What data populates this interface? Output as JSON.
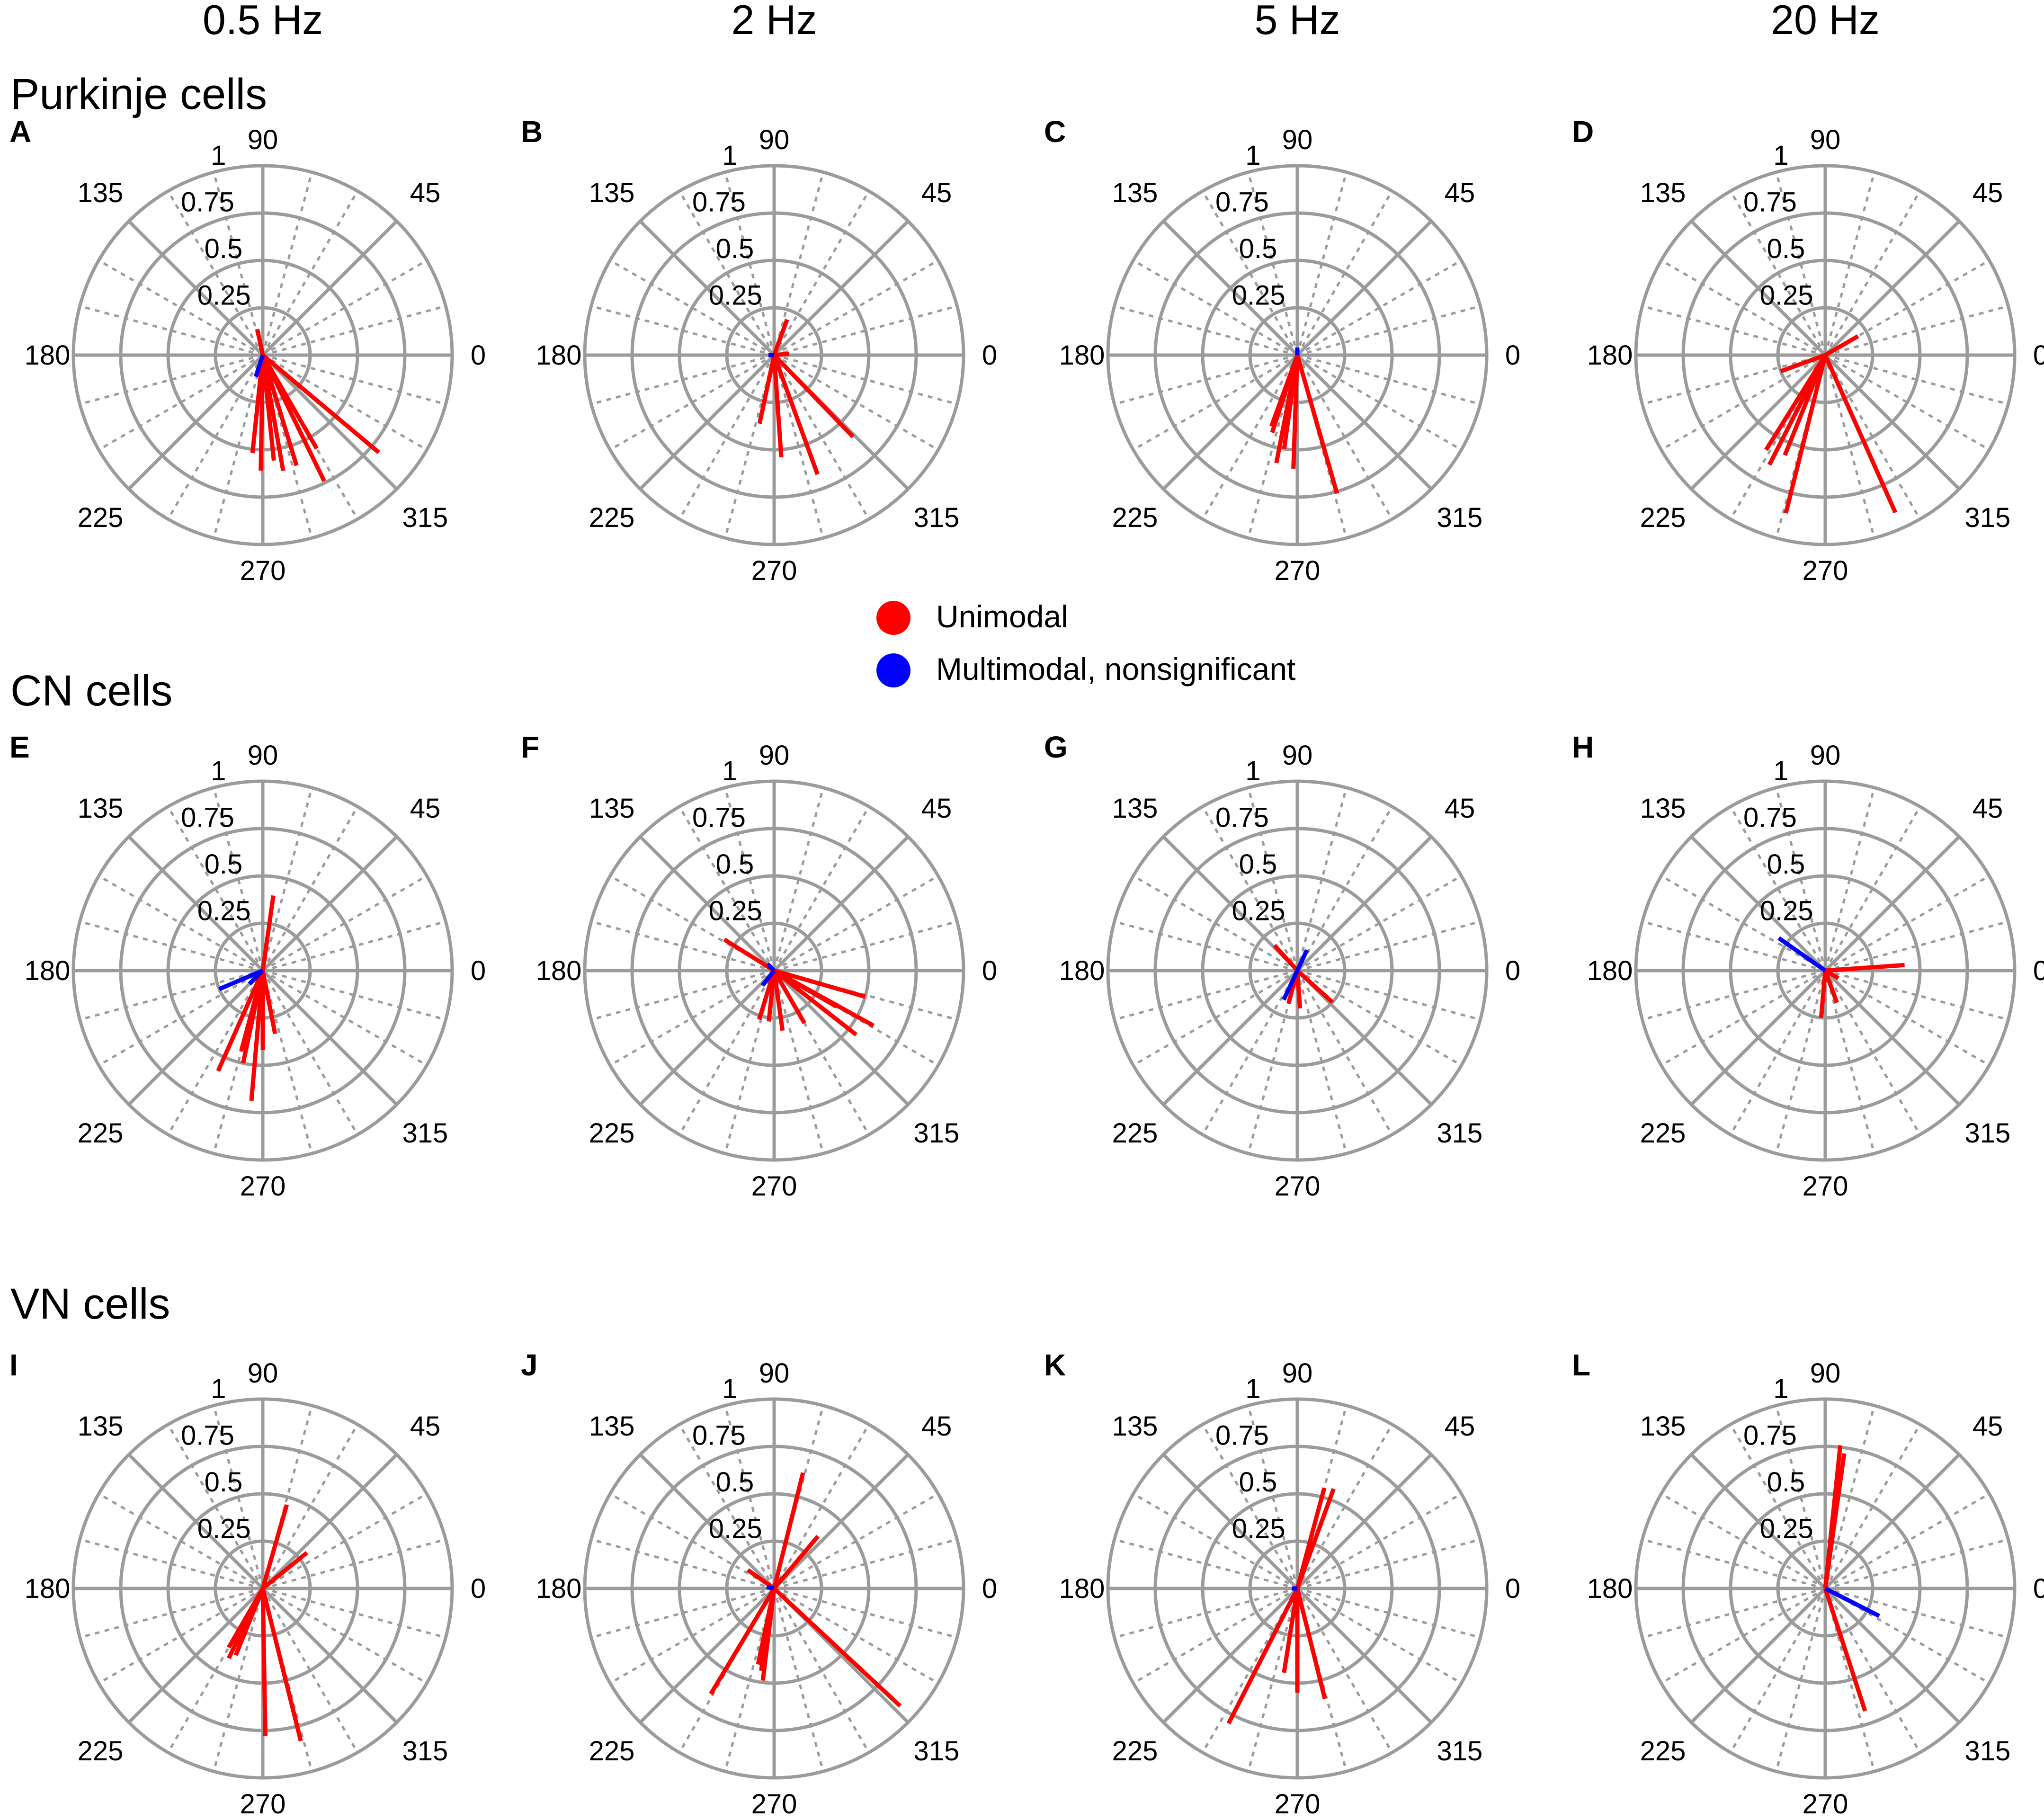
{
  "title_row": [
    "0.5 Hz",
    "2 Hz",
    "5 Hz",
    "20 Hz"
  ],
  "rows": [
    "Purkinje cells",
    "CN cells",
    "VN cells"
  ],
  "legend": {
    "unimodal": "Unimodal",
    "multimodal": "Multimodal, nonsignificant",
    "unimodal_color": "#ff0000",
    "multimodal_color": "#0000ff"
  },
  "chart_data": {
    "type": "polar",
    "radial_ticks": [
      "0.25",
      "0.5",
      "0.75",
      "1"
    ],
    "angle_ticks": [
      "0",
      "45",
      "90",
      "135",
      "180",
      "225",
      "270",
      "315"
    ],
    "rlim": [
      0,
      1
    ],
    "angle_unit": "degrees",
    "panels": [
      {
        "letter": "A",
        "row": "Purkinje cells",
        "freq": "0.5 Hz",
        "vectors": [
          {
            "angle": 320,
            "r": 0.8,
            "type": "unimodal"
          },
          {
            "angle": 296,
            "r": 0.74,
            "type": "unimodal"
          },
          {
            "angle": 300,
            "r": 0.57,
            "type": "unimodal"
          },
          {
            "angle": 287,
            "r": 0.61,
            "type": "unimodal"
          },
          {
            "angle": 280,
            "r": 0.62,
            "type": "unimodal"
          },
          {
            "angle": 276,
            "r": 0.56,
            "type": "unimodal"
          },
          {
            "angle": 269,
            "r": 0.61,
            "type": "unimodal"
          },
          {
            "angle": 264,
            "r": 0.52,
            "type": "unimodal"
          },
          {
            "angle": 102,
            "r": 0.14,
            "type": "unimodal"
          },
          {
            "angle": 252,
            "r": 0.12,
            "type": "multimodal"
          }
        ]
      },
      {
        "letter": "B",
        "row": "Purkinje cells",
        "freq": "2 Hz",
        "vectors": [
          {
            "angle": 314,
            "r": 0.6,
            "type": "unimodal"
          },
          {
            "angle": 290,
            "r": 0.67,
            "type": "unimodal"
          },
          {
            "angle": 274,
            "r": 0.54,
            "type": "unimodal"
          },
          {
            "angle": 258,
            "r": 0.37,
            "type": "unimodal"
          },
          {
            "angle": 70,
            "r": 0.2,
            "type": "unimodal"
          },
          {
            "angle": 5,
            "r": 0.08,
            "type": "unimodal"
          },
          {
            "angle": 180,
            "r": 0.03,
            "type": "multimodal"
          }
        ]
      },
      {
        "letter": "C",
        "row": "Purkinje cells",
        "freq": "5 Hz",
        "vectors": [
          {
            "angle": 286,
            "r": 0.76,
            "type": "unimodal"
          },
          {
            "angle": 268,
            "r": 0.6,
            "type": "unimodal"
          },
          {
            "angle": 259,
            "r": 0.58,
            "type": "unimodal"
          },
          {
            "angle": 252,
            "r": 0.43,
            "type": "unimodal"
          },
          {
            "angle": 250,
            "r": 0.4,
            "type": "unimodal"
          },
          {
            "angle": 262,
            "r": 0.5,
            "type": "unimodal"
          },
          {
            "angle": 90,
            "r": 0.04,
            "type": "multimodal"
          }
        ]
      },
      {
        "letter": "D",
        "row": "Purkinje cells",
        "freq": "20 Hz",
        "vectors": [
          {
            "angle": 294,
            "r": 0.91,
            "type": "unimodal"
          },
          {
            "angle": 256,
            "r": 0.86,
            "type": "unimodal"
          },
          {
            "angle": 243,
            "r": 0.65,
            "type": "unimodal"
          },
          {
            "angle": 238,
            "r": 0.59,
            "type": "unimodal"
          },
          {
            "angle": 248,
            "r": 0.57,
            "type": "unimodal"
          },
          {
            "angle": 200,
            "r": 0.25,
            "type": "unimodal"
          },
          {
            "angle": 30,
            "r": 0.2,
            "type": "unimodal"
          }
        ]
      },
      {
        "letter": "E",
        "row": "CN cells",
        "freq": "0.5 Hz",
        "vectors": [
          {
            "angle": 82,
            "r": 0.4,
            "type": "unimodal"
          },
          {
            "angle": 246,
            "r": 0.58,
            "type": "unimodal"
          },
          {
            "angle": 265,
            "r": 0.69,
            "type": "unimodal"
          },
          {
            "angle": 258,
            "r": 0.5,
            "type": "unimodal"
          },
          {
            "angle": 255,
            "r": 0.44,
            "type": "unimodal"
          },
          {
            "angle": 270,
            "r": 0.42,
            "type": "unimodal"
          },
          {
            "angle": 281,
            "r": 0.34,
            "type": "unimodal"
          },
          {
            "angle": 203,
            "r": 0.25,
            "type": "multimodal"
          },
          {
            "angle": 225,
            "r": 0.1,
            "type": "multimodal"
          }
        ]
      },
      {
        "letter": "F",
        "row": "CN cells",
        "freq": "2 Hz",
        "vectors": [
          {
            "angle": 148,
            "r": 0.31,
            "type": "unimodal"
          },
          {
            "angle": 331,
            "r": 0.6,
            "type": "unimodal"
          },
          {
            "angle": 322,
            "r": 0.55,
            "type": "unimodal"
          },
          {
            "angle": 344,
            "r": 0.5,
            "type": "unimodal"
          },
          {
            "angle": 330,
            "r": 0.38,
            "type": "unimodal"
          },
          {
            "angle": 300,
            "r": 0.32,
            "type": "unimodal"
          },
          {
            "angle": 278,
            "r": 0.32,
            "type": "unimodal"
          },
          {
            "angle": 264,
            "r": 0.27,
            "type": "unimodal"
          },
          {
            "angle": 253,
            "r": 0.27,
            "type": "unimodal"
          },
          {
            "angle": 232,
            "r": 0.1,
            "type": "multimodal"
          },
          {
            "angle": 135,
            "r": 0.05,
            "type": "multimodal"
          }
        ]
      },
      {
        "letter": "G",
        "row": "CN cells",
        "freq": "5 Hz",
        "vectors": [
          {
            "angle": 132,
            "r": 0.18,
            "type": "unimodal"
          },
          {
            "angle": 318,
            "r": 0.25,
            "type": "unimodal"
          },
          {
            "angle": 274,
            "r": 0.2,
            "type": "unimodal"
          },
          {
            "angle": 255,
            "r": 0.18,
            "type": "unimodal"
          },
          {
            "angle": 65,
            "r": 0.12,
            "type": "multimodal"
          },
          {
            "angle": 245,
            "r": 0.17,
            "type": "multimodal"
          }
        ]
      },
      {
        "letter": "H",
        "row": "CN cells",
        "freq": "20 Hz",
        "vectors": [
          {
            "angle": 4,
            "r": 0.42,
            "type": "unimodal"
          },
          {
            "angle": 265,
            "r": 0.25,
            "type": "unimodal"
          },
          {
            "angle": 290,
            "r": 0.18,
            "type": "unimodal"
          },
          {
            "angle": 330,
            "r": 0.08,
            "type": "unimodal"
          },
          {
            "angle": 145,
            "r": 0.3,
            "type": "multimodal"
          }
        ]
      },
      {
        "letter": "I",
        "row": "VN cells",
        "freq": "0.5 Hz",
        "vectors": [
          {
            "angle": 74,
            "r": 0.46,
            "type": "unimodal"
          },
          {
            "angle": 39,
            "r": 0.3,
            "type": "unimodal"
          },
          {
            "angle": 284,
            "r": 0.83,
            "type": "unimodal"
          },
          {
            "angle": 271,
            "r": 0.78,
            "type": "unimodal"
          },
          {
            "angle": 244,
            "r": 0.41,
            "type": "unimodal"
          },
          {
            "angle": 240,
            "r": 0.36,
            "type": "unimodal"
          },
          {
            "angle": 248,
            "r": 0.38,
            "type": "unimodal"
          }
        ]
      },
      {
        "letter": "J",
        "row": "VN cells",
        "freq": "2 Hz",
        "vectors": [
          {
            "angle": 76,
            "r": 0.63,
            "type": "unimodal"
          },
          {
            "angle": 50,
            "r": 0.36,
            "type": "unimodal"
          },
          {
            "angle": 145,
            "r": 0.17,
            "type": "unimodal"
          },
          {
            "angle": 317,
            "r": 0.91,
            "type": "unimodal"
          },
          {
            "angle": 239,
            "r": 0.65,
            "type": "unimodal"
          },
          {
            "angle": 263,
            "r": 0.49,
            "type": "unimodal"
          },
          {
            "angle": 261,
            "r": 0.44,
            "type": "unimodal"
          },
          {
            "angle": 258,
            "r": 0.41,
            "type": "unimodal"
          },
          {
            "angle": 170,
            "r": 0.04,
            "type": "multimodal"
          }
        ]
      },
      {
        "letter": "K",
        "row": "VN cells",
        "freq": "5 Hz",
        "vectors": [
          {
            "angle": 70,
            "r": 0.56,
            "type": "unimodal"
          },
          {
            "angle": 75,
            "r": 0.55,
            "type": "unimodal"
          },
          {
            "angle": 243,
            "r": 0.8,
            "type": "unimodal"
          },
          {
            "angle": 284,
            "r": 0.6,
            "type": "unimodal"
          },
          {
            "angle": 270,
            "r": 0.55,
            "type": "unimodal"
          },
          {
            "angle": 261,
            "r": 0.45,
            "type": "unimodal"
          },
          {
            "angle": 180,
            "r": 0.03,
            "type": "multimodal"
          }
        ]
      },
      {
        "letter": "L",
        "row": "VN cells",
        "freq": "20 Hz",
        "vectors": [
          {
            "angle": 84,
            "r": 0.76,
            "type": "unimodal"
          },
          {
            "angle": 82,
            "r": 0.72,
            "type": "unimodal"
          },
          {
            "angle": 288,
            "r": 0.68,
            "type": "unimodal"
          },
          {
            "angle": 333,
            "r": 0.32,
            "type": "multimodal"
          }
        ]
      }
    ]
  }
}
